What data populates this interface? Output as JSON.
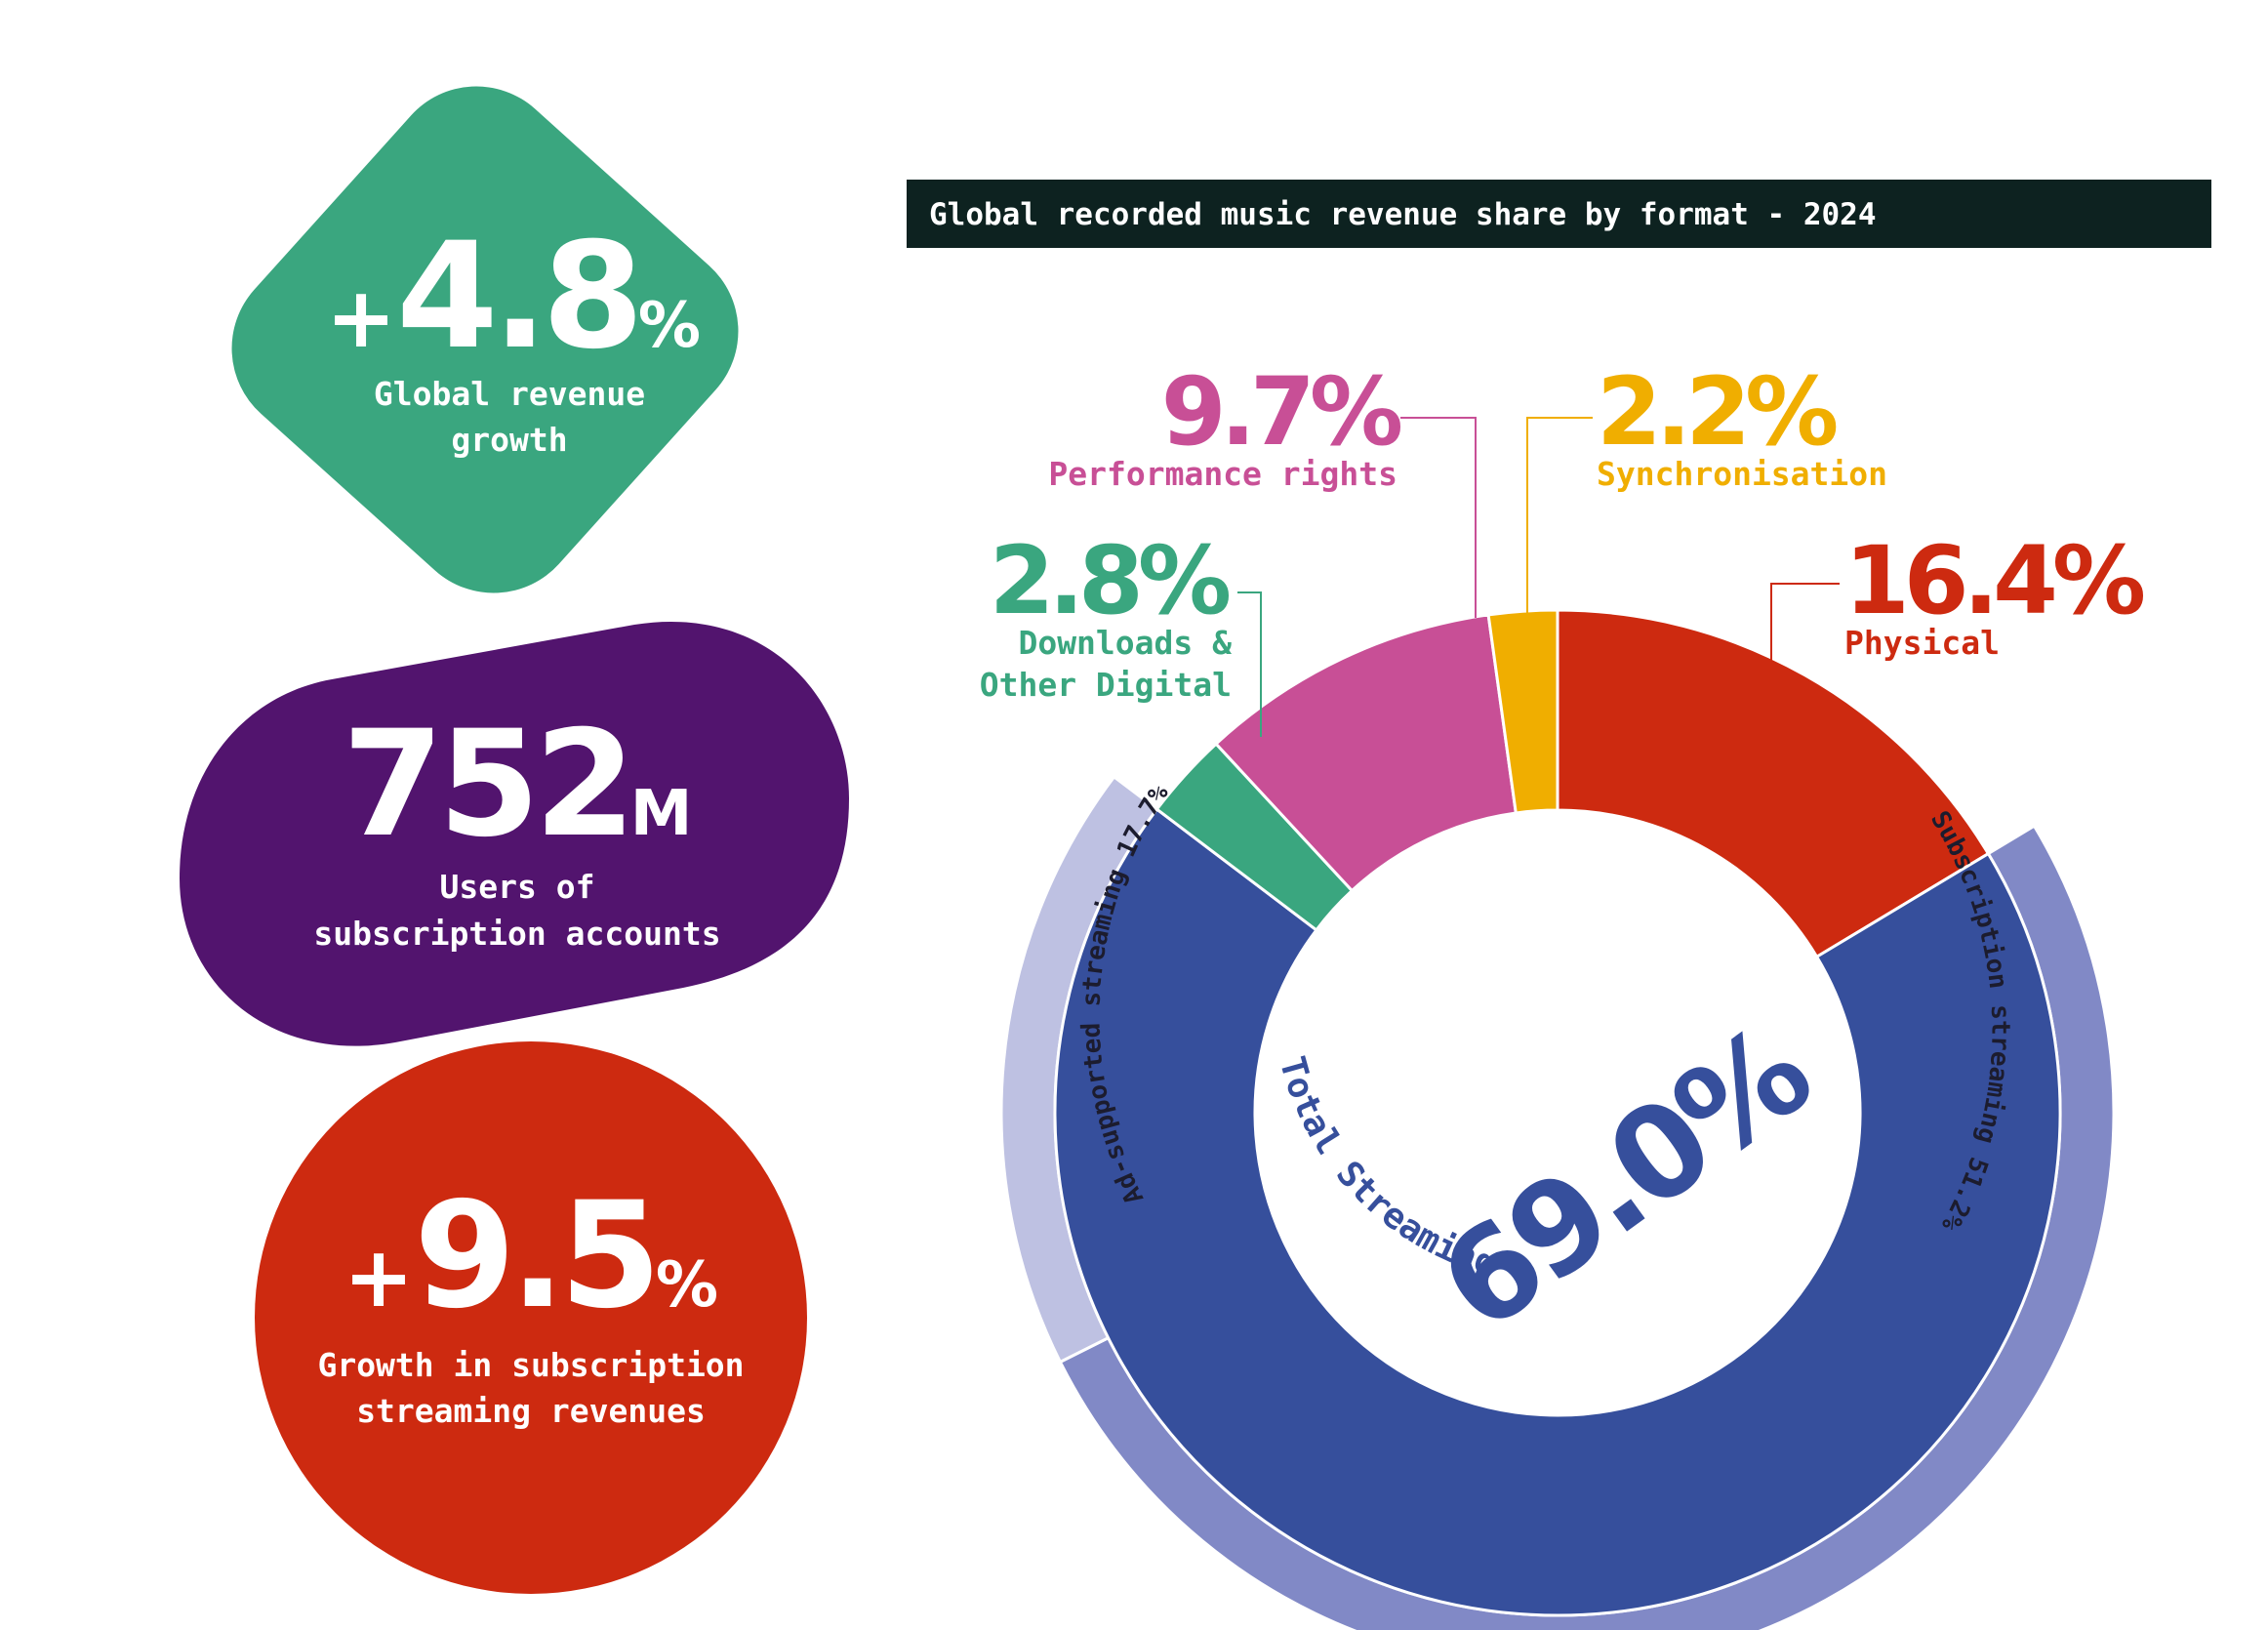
{
  "colors": {
    "green": "#3aa67f",
    "purple": "#52146e",
    "red": "#cd2a10",
    "pink": "#c84f96",
    "yellow": "#f0ae00",
    "blue": "#364f9c",
    "lavender": "#8189c6",
    "lavender_light": "#bec1e2",
    "dark": "#0d2220",
    "white": "#ffffff"
  },
  "kpis": {
    "revenue_growth": {
      "prefix": "+",
      "value": "4.8",
      "suffix": "%",
      "label_line1": "Global revenue",
      "label_line2": "growth"
    },
    "subscribers": {
      "value": "752",
      "suffix": "M",
      "label_line1": "Users of",
      "label_line2": "subscription accounts"
    },
    "subscription_growth": {
      "prefix": "+",
      "value": "9.5",
      "suffix": "%",
      "label_line1": "Growth in subscription",
      "label_line2": "streaming revenues"
    }
  },
  "chart_data": {
    "type": "pie",
    "title": "Global recorded music revenue share by format - 2024",
    "unit": "%",
    "segments": [
      {
        "name": "Physical",
        "value": 16.4,
        "label": "16.4%",
        "legend_line1": "Physical",
        "legend_line2": ""
      },
      {
        "name": "Total Streaming",
        "value": 69.0,
        "label": "69.0%",
        "legend_line1": "Total Streaming",
        "legend_line2": ""
      },
      {
        "name": "Downloads & Other Digital",
        "value": 2.8,
        "label": "2.8%",
        "legend_line1": "Downloads &",
        "legend_line2": "Other Digital"
      },
      {
        "name": "Performance rights",
        "value": 9.7,
        "label": "9.7%",
        "legend_line1": "Performance rights",
        "legend_line2": ""
      },
      {
        "name": "Synchronisation",
        "value": 2.2,
        "label": "2.2%",
        "legend_line1": "Synchronisation",
        "legend_line2": ""
      }
    ],
    "streaming_breakdown": [
      {
        "name": "Subscription streaming",
        "value": 51.2,
        "label": "Subscription streaming 51.2%"
      },
      {
        "name": "Ad-supported streaming",
        "value": 17.7,
        "label": "Ad-supported streaming 17.7%"
      }
    ],
    "center_label": "Total Streaming",
    "center_value": "69.0%"
  }
}
